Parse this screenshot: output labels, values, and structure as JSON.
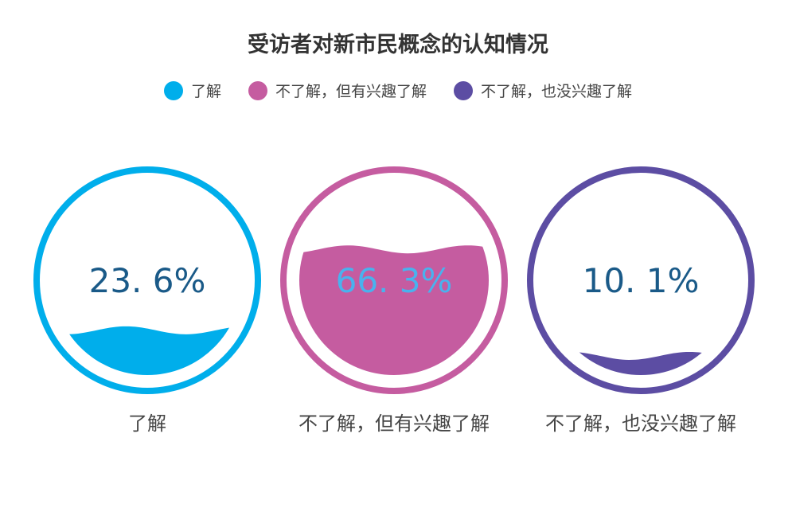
{
  "chart_data": {
    "type": "liquidfill",
    "title": "受访者对新市民概念的认知情况",
    "legend_position": "top-center",
    "series": [
      {
        "name": "了解",
        "value": 23.6,
        "label": "23. 6%",
        "color": "#00aeeb",
        "label_color": "#1a5a88"
      },
      {
        "name": "不了解，但有兴趣了解",
        "value": 66.3,
        "label": "66. 3%",
        "color": "#c55ca0",
        "label_color": "#49b2ee"
      },
      {
        "name": "不了解，也没兴趣了解",
        "value": 10.1,
        "label": "10. 1%",
        "color": "#5c4da3",
        "label_color": "#1a5a88"
      }
    ]
  }
}
